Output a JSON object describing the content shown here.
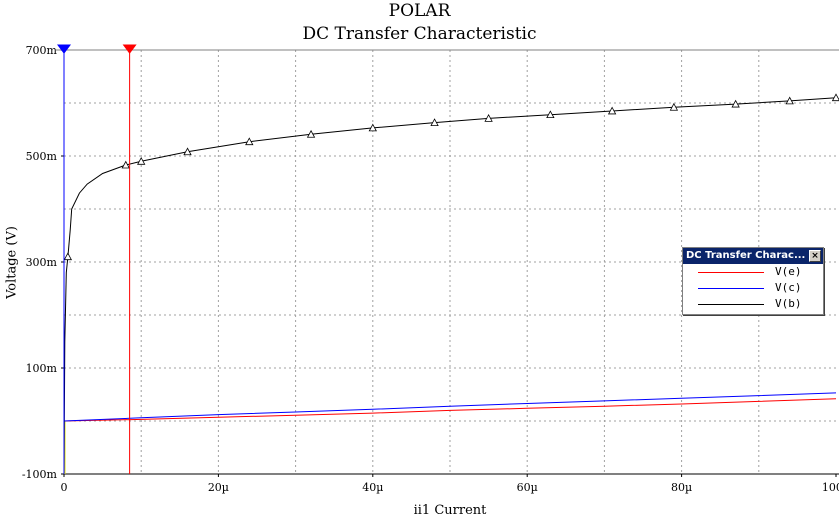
{
  "chart_data": {
    "type": "line",
    "title": "POLAR",
    "subtitle": "DC Transfer Characteristic",
    "xlabel": "ii1 Current",
    "ylabel": "Voltage (V)",
    "xlim": [
      0,
      100
    ],
    "ylim": [
      -100,
      700
    ],
    "x_unit": "µ",
    "y_unit": "m",
    "x_ticks": [
      "0",
      "20µ",
      "40µ",
      "60µ",
      "80µ",
      "100µ"
    ],
    "y_ticks": [
      "-100m",
      "100m",
      "300m",
      "500m",
      "700m"
    ],
    "grid": true,
    "legend_position": "right",
    "series": [
      {
        "name": "V(e)",
        "color": "#ff0000",
        "x": [
          0,
          10,
          20,
          30,
          40,
          50,
          60,
          70,
          80,
          90,
          100
        ],
        "y": [
          0,
          3,
          7,
          11,
          15,
          20,
          24,
          28,
          32,
          37,
          42
        ]
      },
      {
        "name": "V(c)",
        "color": "#0000ff",
        "x": [
          0,
          10,
          20,
          30,
          40,
          50,
          60,
          70,
          80,
          90,
          100
        ],
        "y": [
          0,
          6,
          12,
          17,
          22,
          28,
          33,
          38,
          43,
          48,
          53
        ]
      },
      {
        "name": "V(b)",
        "color": "#000000",
        "marker": "triangle",
        "x": [
          0,
          0.1,
          0.3,
          0.5,
          0.8,
          1,
          2,
          3,
          5,
          8,
          10,
          16,
          24,
          32,
          40,
          48,
          55,
          63,
          71,
          79,
          87,
          94,
          100
        ],
        "y": [
          -100,
          150,
          280,
          310,
          360,
          400,
          430,
          447,
          467,
          483,
          490,
          508,
          527,
          541,
          553,
          563,
          571,
          578,
          585,
          592,
          598,
          604,
          610
        ]
      }
    ],
    "cursors": [
      {
        "color": "#0000ff",
        "x": 0
      },
      {
        "color": "#ff0000",
        "x": 8.5
      }
    ]
  },
  "legend": {
    "title": "DC Transfer Charac...",
    "close_icon": "×"
  }
}
